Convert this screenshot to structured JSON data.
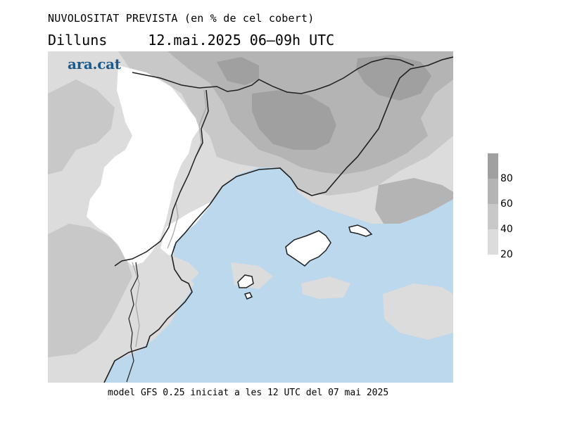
{
  "title": {
    "line1": "NUVOLOSITAT PREVISTA (en % de cel cobert)",
    "day": "Dilluns",
    "datetime": "12.mai.2025 06–09h UTC"
  },
  "logo": "ara.cat",
  "legend": {
    "unit": "% de cel cobert",
    "labels": [
      "80",
      "60",
      "40",
      "20"
    ],
    "colors": [
      "#a0a0a0",
      "#b4b4b4",
      "#c8c8c8",
      "#dcdcdc"
    ]
  },
  "footer": "model GFS 0.25 iniciat a les 12 UTC del 07 mai 2025",
  "colors": {
    "sea": "#bcd8ec",
    "land_clear": "#ffffff",
    "cloud_20_40": "#dcdcdc",
    "cloud_40_60": "#c8c8c8",
    "cloud_60_80": "#b4b4b4",
    "cloud_80_100": "#a0a0a0",
    "coastline": "#202020",
    "border": "#a8a8a8"
  }
}
